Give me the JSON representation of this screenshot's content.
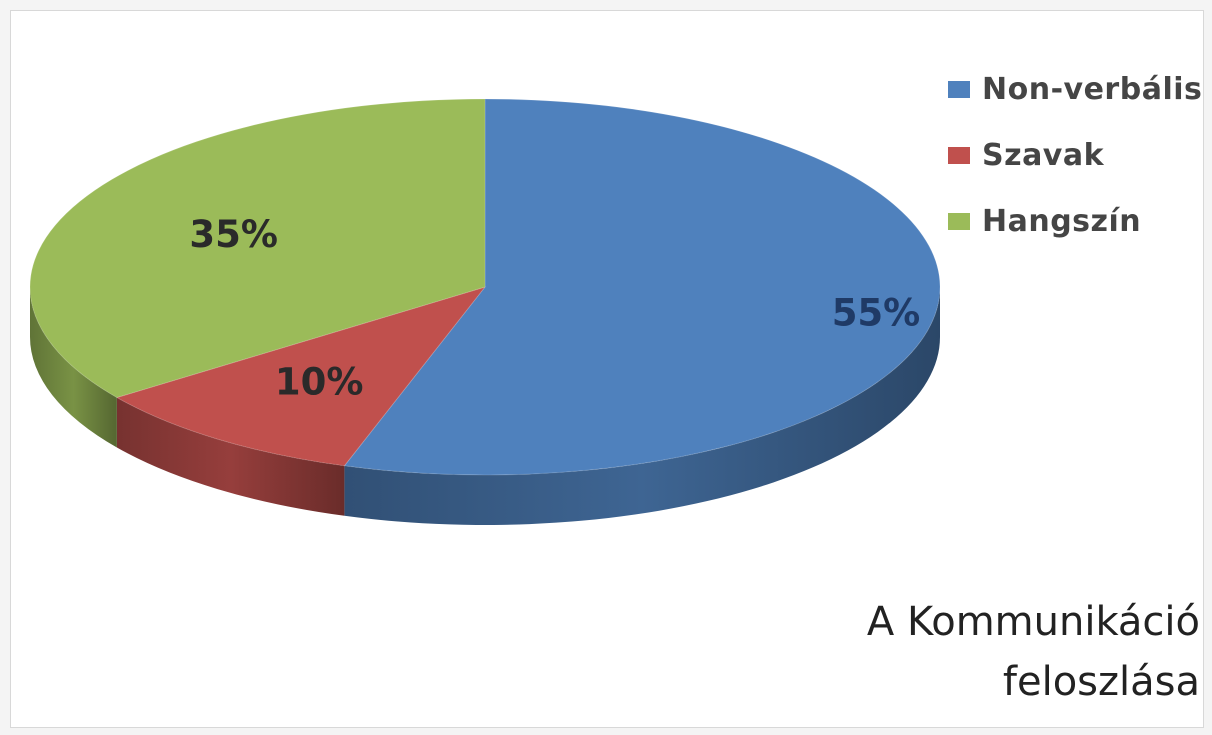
{
  "chart_data": {
    "type": "pie",
    "style": "3d",
    "title": "A Kommunikáció\nfeloszlása",
    "series": [
      {
        "name": "Non-verbális",
        "value": 55,
        "label": "55%",
        "color": "#4f81bd"
      },
      {
        "name": "Szavak",
        "value": 10,
        "label": "10%",
        "color": "#c0504d"
      },
      {
        "name": "Hangszín",
        "value": 35,
        "label": "35%",
        "color": "#9bbb59"
      }
    ],
    "legend_position": "top-right"
  }
}
